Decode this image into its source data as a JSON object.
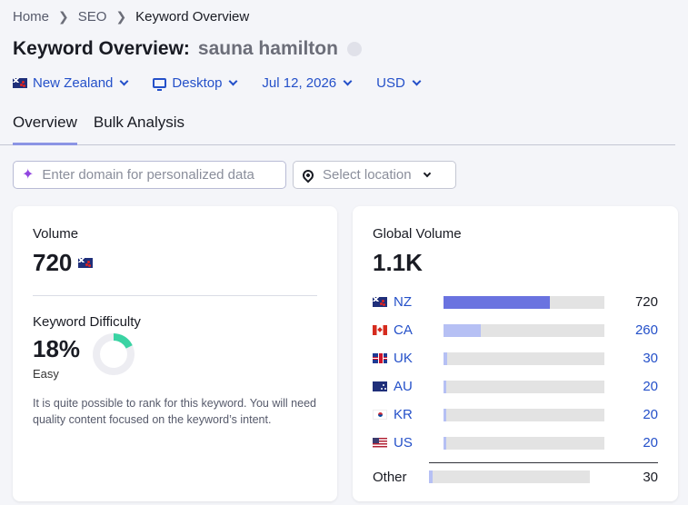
{
  "breadcrumb": [
    "Home",
    "SEO",
    "Keyword Overview"
  ],
  "title": {
    "prefix": "Keyword Overview:",
    "keyword": "sauna hamilton"
  },
  "filters": {
    "country": "New Zealand",
    "device": "Desktop",
    "date": "Jul 12, 2026",
    "currency": "USD"
  },
  "tabs": [
    {
      "label": "Overview",
      "active": true
    },
    {
      "label": "Bulk Analysis",
      "active": false
    }
  ],
  "domain_input": {
    "placeholder": "Enter domain for personalized data"
  },
  "location_select": {
    "placeholder": "Select location"
  },
  "volume_card": {
    "label": "Volume",
    "value": "720",
    "kd_label": "Keyword Difficulty",
    "kd_value": "18%",
    "kd_percent": 18,
    "kd_level": "Easy",
    "kd_description": "It is quite possible to rank for this keyword. You will need quality content focused on the keyword’s intent.",
    "kd_color": "#3ad3a3"
  },
  "global_card": {
    "label": "Global Volume",
    "value": "1.1K",
    "rows": [
      {
        "code": "NZ",
        "flag": "nz-flag-icon",
        "value": "720",
        "fraction": 0.66,
        "color": "#6a73e0",
        "link": false
      },
      {
        "code": "CA",
        "flag": "ca-flag-icon",
        "value": "260",
        "fraction": 0.23,
        "color": "#b6c0f4",
        "link": true
      },
      {
        "code": "UK",
        "flag": "uk-flag-icon",
        "value": "30",
        "fraction": 0.02,
        "color": "#b6c0f4",
        "link": true
      },
      {
        "code": "AU",
        "flag": "au-flag-icon",
        "value": "20",
        "fraction": 0.015,
        "color": "#b6c0f4",
        "link": true
      },
      {
        "code": "KR",
        "flag": "kr-flag-icon",
        "value": "20",
        "fraction": 0.015,
        "color": "#b6c0f4",
        "link": true
      },
      {
        "code": "US",
        "flag": "us-flag-icon",
        "value": "20",
        "fraction": 0.015,
        "color": "#b6c0f4",
        "link": true
      }
    ],
    "other": {
      "label": "Other",
      "value": "30",
      "fraction": 0.02,
      "color": "#b6c0f4"
    }
  }
}
